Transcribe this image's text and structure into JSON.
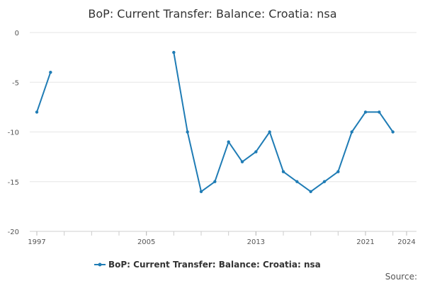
{
  "chart_data": {
    "type": "line",
    "title": "BoP: Current Transfer: Balance: Croatia: nsa",
    "xlabel": "",
    "ylabel": "",
    "xlim": [
      1997,
      2024
    ],
    "ylim": [
      -20,
      0
    ],
    "x_ticks": [
      1997,
      2005,
      2013,
      2021,
      2024
    ],
    "y_ticks": [
      0,
      -5,
      -10,
      -15,
      -20
    ],
    "grid": true,
    "legend_position": "bottom",
    "series": [
      {
        "name": "BoP: Current Transfer: Balance: Croatia: nsa",
        "color": "#1f7cb5",
        "x": [
          1997,
          1998,
          1999,
          2000,
          2001,
          2002,
          2003,
          2004,
          2005,
          2006,
          2007,
          2008,
          2009,
          2010,
          2011,
          2012,
          2013,
          2014,
          2015,
          2016,
          2017,
          2018,
          2019,
          2020,
          2021,
          2022,
          2023,
          2024
        ],
        "y": [
          -8,
          -4,
          null,
          null,
          null,
          null,
          null,
          null,
          null,
          null,
          -2,
          -10,
          -16,
          -15,
          -11,
          -13,
          -12,
          -10,
          -14,
          -15,
          -16,
          -15,
          -14,
          -10,
          -8,
          -8,
          -10,
          null
        ]
      }
    ]
  },
  "source_label": "Source:"
}
